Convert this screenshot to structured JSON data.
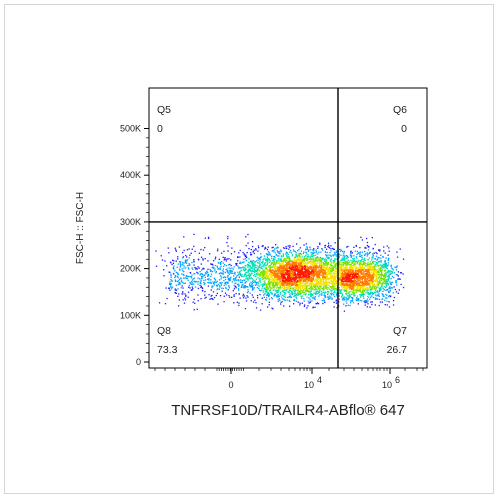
{
  "chart_data": {
    "type": "scatter",
    "subtype": "flow-cytometry-density-dot-plot",
    "xlabel": "TNFRSF10D/TRAILR4-ABflo® 647",
    "ylabel": "FSC-H :: FSC-H",
    "x_axis": {
      "scale": "biexponential",
      "ticks": [
        {
          "label": "0",
          "exp": ""
        },
        {
          "label": "10",
          "exp": "4"
        },
        {
          "label": "10",
          "exp": "6"
        }
      ]
    },
    "y_axis": {
      "scale": "linear",
      "ylim": [
        0,
        580000
      ],
      "ticks": [
        {
          "value": 0,
          "label": "0"
        },
        {
          "value": 100000,
          "label": "100K"
        },
        {
          "value": 200000,
          "label": "200K"
        },
        {
          "value": 300000,
          "label": "300K"
        },
        {
          "value": 400000,
          "label": "400K"
        },
        {
          "value": 500000,
          "label": "500K"
        }
      ]
    },
    "gate": {
      "y_threshold": 300000
    },
    "quadrants": [
      {
        "name": "Q5",
        "value": "0",
        "position": "top-left"
      },
      {
        "name": "Q6",
        "value": "0",
        "position": "top-right"
      },
      {
        "name": "Q7",
        "value": "26.7",
        "position": "bottom-right"
      },
      {
        "name": "Q8",
        "value": "73.3",
        "position": "bottom-left"
      }
    ],
    "population": {
      "y_center": 190000,
      "y_spread": 25000,
      "density_colormap": [
        "#1a1aff",
        "#00a0ff",
        "#00e0b0",
        "#7be000",
        "#f5e000",
        "#ff7a00",
        "#ff1a00"
      ]
    },
    "grid": false
  }
}
